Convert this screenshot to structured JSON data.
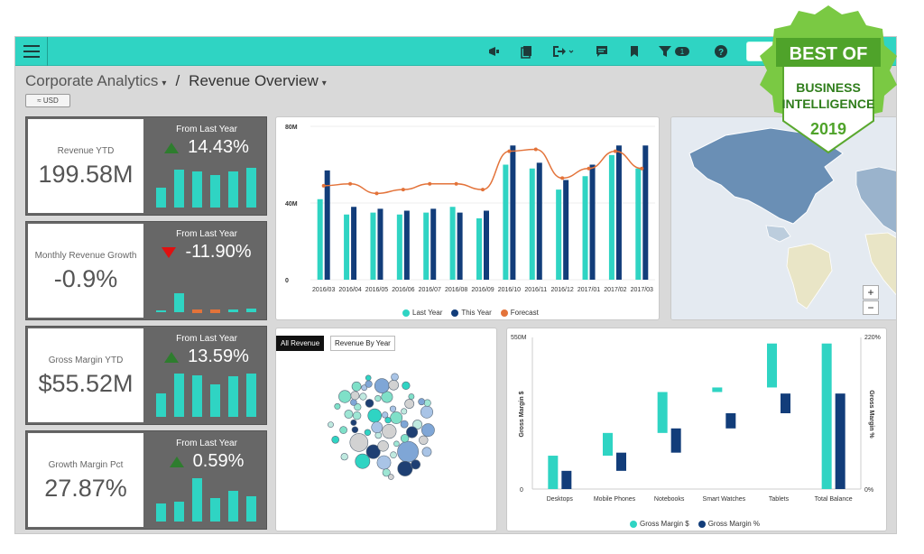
{
  "breadcrumb": {
    "root": "Corporate Analytics",
    "separator": "/",
    "current": "Revenue Overview"
  },
  "currency_button": "≈ USD",
  "kpis": [
    {
      "label": "Revenue YTD",
      "value": "199.58M",
      "sub": "From Last Year",
      "delta": "14.43%",
      "direction": "up",
      "spark": [
        22,
        42,
        40,
        36,
        40,
        44
      ]
    },
    {
      "label": "Monthly Revenue Growth",
      "value": "-0.9%",
      "sub": "From Last Year",
      "delta": "-11.90%",
      "direction": "down",
      "spark": [
        1,
        21,
        -3,
        -3,
        3,
        4
      ]
    },
    {
      "label": "Gross Margin YTD",
      "value": "$55.52M",
      "sub": "From Last Year",
      "delta": "13.59%",
      "direction": "up",
      "spark": [
        26,
        48,
        46,
        36,
        45,
        48
      ]
    },
    {
      "label": "Growth Margin Pct",
      "value": "27.87%",
      "sub": "From Last Year",
      "delta": "0.59%",
      "direction": "up",
      "spark": [
        20,
        22,
        48,
        26,
        34,
        28
      ]
    }
  ],
  "colors": {
    "teal": "#2fd4c3",
    "navy": "#123d7a",
    "forecast": "#e3733a",
    "topbar": "#2fd4c3",
    "kpi_bg": "#676767"
  },
  "toolbar_icons": [
    "megaphone-icon",
    "copy-icon",
    "export-icon",
    "comment-icon",
    "bookmark-icon",
    "filter-icon",
    "help-icon"
  ],
  "filter_count": "1",
  "bubble_tabs": {
    "all": "All Revenue",
    "by_year": "Revenue By Year"
  },
  "map_zoom": {
    "in": "+",
    "out": "−"
  },
  "badge": {
    "line1": "BEST OF",
    "line2": "BUSINESS",
    "line3": "INTELLIGENCE",
    "year": "2019"
  },
  "chart_data": [
    {
      "type": "bar",
      "categories": [
        "2016/03",
        "2016/04",
        "2016/05",
        "2016/06",
        "2016/07",
        "2016/08",
        "2016/09",
        "2016/10",
        "2016/11",
        "2016/12",
        "2017/01",
        "2017/02",
        "2017/03"
      ],
      "yticks": [
        "0",
        "40M",
        "80M"
      ],
      "ylim": [
        0,
        80
      ],
      "series": [
        {
          "name": "Last Year",
          "values": [
            42,
            34,
            35,
            34,
            35,
            38,
            32,
            60,
            58,
            47,
            54,
            65,
            58
          ]
        },
        {
          "name": "This Year",
          "values": [
            57,
            38,
            37,
            36,
            37,
            35,
            36,
            70,
            61,
            52,
            60,
            70,
            70
          ]
        },
        {
          "name": "Forecast",
          "type": "line",
          "values": [
            49,
            50,
            45,
            47,
            50,
            50,
            47,
            67,
            68,
            53,
            58,
            67,
            58
          ]
        }
      ]
    },
    {
      "type": "bar",
      "categories": [
        "Desktops",
        "Mobile Phones",
        "Notebooks",
        "Smart Watches",
        "Tablets",
        "Total Balance"
      ],
      "left_ticks": [
        "0",
        "550M"
      ],
      "right_ticks": [
        "0%",
        "220%"
      ],
      "ylabel_left": "Gross Margin $",
      "ylabel_right": "Gross Margin %",
      "series": [
        {
          "name": "Gross Margin $",
          "ranges": [
            [
              0,
              0.22
            ],
            [
              0.22,
              0.37
            ],
            [
              0.37,
              0.64
            ],
            [
              0.64,
              0.67
            ],
            [
              0.67,
              0.96
            ],
            [
              0,
              0.96
            ]
          ]
        },
        {
          "name": "Gross Margin %",
          "ranges": [
            [
              0,
              0.12
            ],
            [
              0.12,
              0.24
            ],
            [
              0.24,
              0.4
            ],
            [
              0.4,
              0.5
            ],
            [
              0.5,
              0.63
            ],
            [
              0,
              0.63
            ]
          ]
        }
      ]
    }
  ]
}
